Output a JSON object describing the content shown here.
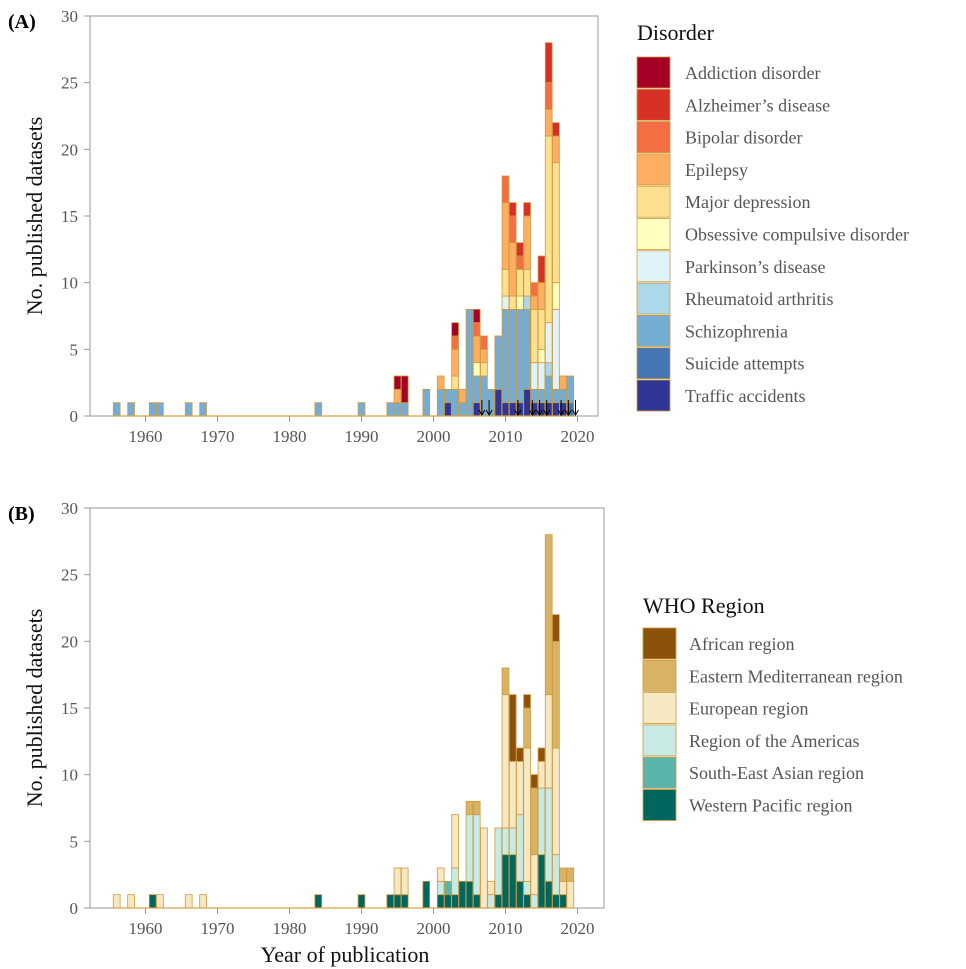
{
  "chart_data": [
    {
      "panel_label": "(A)",
      "type": "bar",
      "stacked": true,
      "xlabel": "",
      "ylabel": "No. published datasets",
      "xlim": [
        1952,
        2022
      ],
      "ylim": [
        0,
        30
      ],
      "x_ticks": [
        1960,
        1970,
        1980,
        1990,
        2000,
        2010,
        2020
      ],
      "y_ticks": [
        0,
        5,
        10,
        15,
        20,
        25,
        30
      ],
      "legend_title": "Disorder",
      "legend_position": "right",
      "series": [
        {
          "name": "Addiction disorder",
          "color": "#a50026"
        },
        {
          "name": "Alzheimer’s disease",
          "color": "#d73027"
        },
        {
          "name": "Bipolar disorder",
          "color": "#f46d43"
        },
        {
          "name": "Epilepsy",
          "color": "#fdae61"
        },
        {
          "name": "Major depression",
          "color": "#fee090"
        },
        {
          "name": "Obsessive compulsive disorder",
          "color": "#ffffbf"
        },
        {
          "name": "Parkinson’s disease",
          "color": "#e0f3f8"
        },
        {
          "name": "Rheumatoid arthritis",
          "color": "#abd9e9"
        },
        {
          "name": "Schizophrenia",
          "color": "#74add1"
        },
        {
          "name": "Suicide attempts",
          "color": "#4575b4"
        },
        {
          "name": "Traffic accidents",
          "color": "#313695"
        }
      ],
      "data": [
        {
          "year": 1956,
          "counts": {
            "Schizophrenia": 1
          }
        },
        {
          "year": 1958,
          "counts": {
            "Schizophrenia": 1
          }
        },
        {
          "year": 1961,
          "counts": {
            "Schizophrenia": 1
          }
        },
        {
          "year": 1962,
          "counts": {
            "Schizophrenia": 1
          }
        },
        {
          "year": 1966,
          "counts": {
            "Schizophrenia": 1
          }
        },
        {
          "year": 1968,
          "counts": {
            "Schizophrenia": 1
          }
        },
        {
          "year": 1984,
          "counts": {
            "Schizophrenia": 1
          }
        },
        {
          "year": 1990,
          "counts": {
            "Schizophrenia": 1
          }
        },
        {
          "year": 1994,
          "counts": {
            "Schizophrenia": 1
          }
        },
        {
          "year": 1995,
          "counts": {
            "Schizophrenia": 1,
            "Epilepsy": 1,
            "Addiction disorder": 1
          }
        },
        {
          "year": 1996,
          "counts": {
            "Schizophrenia": 1,
            "Addiction disorder": 2
          }
        },
        {
          "year": 1999,
          "counts": {
            "Schizophrenia": 2
          }
        },
        {
          "year": 2001,
          "counts": {
            "Schizophrenia": 2,
            "Epilepsy": 1
          }
        },
        {
          "year": 2002,
          "counts": {
            "Traffic accidents": 1,
            "Schizophrenia": 1
          }
        },
        {
          "year": 2003,
          "counts": {
            "Schizophrenia": 2,
            "Major depression": 1,
            "Epilepsy": 2,
            "Bipolar disorder": 1,
            "Addiction disorder": 1
          }
        },
        {
          "year": 2004,
          "counts": {
            "Schizophrenia": 1,
            "Epilepsy": 1
          }
        },
        {
          "year": 2005,
          "counts": {
            "Schizophrenia": 8
          }
        },
        {
          "year": 2006,
          "counts": {
            "Traffic accidents": 1,
            "Schizophrenia": 2,
            "Obsessive compulsive disorder": 1,
            "Epilepsy": 2,
            "Bipolar disorder": 1,
            "Addiction disorder": 1
          }
        },
        {
          "year": 2007,
          "counts": {
            "Schizophrenia": 3,
            "Major depression": 1,
            "Epilepsy": 1,
            "Bipolar disorder": 1
          }
        },
        {
          "year": 2008,
          "counts": {
            "Schizophrenia": 2
          }
        },
        {
          "year": 2009,
          "counts": {
            "Traffic accidents": 2,
            "Schizophrenia": 4
          }
        },
        {
          "year": 2010,
          "counts": {
            "Traffic accidents": 1,
            "Schizophrenia": 7,
            "Parkinson’s disease": 1,
            "Major depression": 2,
            "Epilepsy": 5,
            "Bipolar disorder": 2
          }
        },
        {
          "year": 2011,
          "counts": {
            "Traffic accidents": 1,
            "Schizophrenia": 7,
            "Major depression": 1,
            "Epilepsy": 4,
            "Bipolar disorder": 2,
            "Alzheimer’s disease": 1
          }
        },
        {
          "year": 2012,
          "counts": {
            "Traffic accidents": 1,
            "Schizophrenia": 7,
            "Obsessive compulsive disorder": 1,
            "Major depression": 2,
            "Bipolar disorder": 1,
            "Alzheimer’s disease": 1
          }
        },
        {
          "year": 2013,
          "counts": {
            "Traffic accidents": 2,
            "Schizophrenia": 6,
            "Rheumatoid arthritis": 1,
            "Major depression": 2,
            "Epilepsy": 4,
            "Alzheimer’s disease": 1
          }
        },
        {
          "year": 2014,
          "counts": {
            "Traffic accidents": 1,
            "Schizophrenia": 1,
            "Parkinson’s disease": 2,
            "Major depression": 4,
            "Epilepsy": 1,
            "Bipolar disorder": 1
          }
        },
        {
          "year": 2015,
          "counts": {
            "Traffic accidents": 1,
            "Schizophrenia": 1,
            "Parkinson’s disease": 2,
            "Obsessive compulsive disorder": 1,
            "Major depression": 3,
            "Epilepsy": 2,
            "Alzheimer’s disease": 2
          }
        },
        {
          "year": 2016,
          "counts": {
            "Traffic accidents": 1,
            "Schizophrenia": 2,
            "Rheumatoid arthritis": 1,
            "Parkinson’s disease": 3,
            "Major depression": 14,
            "Epilepsy": 2,
            "Bipolar disorder": 2,
            "Alzheimer’s disease": 3
          }
        },
        {
          "year": 2017,
          "counts": {
            "Traffic accidents": 1,
            "Schizophrenia": 1,
            "Parkinson’s disease": 6,
            "Obsessive compulsive disorder": 2,
            "Major depression": 9,
            "Epilepsy": 2,
            "Alzheimer’s disease": 1
          }
        },
        {
          "year": 2018,
          "counts": {
            "Traffic accidents": 1,
            "Schizophrenia": 1,
            "Epilepsy": 1
          }
        },
        {
          "year": 2019,
          "counts": {
            "Suicide attempts": 1,
            "Schizophrenia": 2
          }
        }
      ],
      "arrows_at_years": [
        2007,
        2008,
        2012,
        2014,
        2015,
        2016,
        2018,
        2019,
        2020
      ]
    },
    {
      "panel_label": "(B)",
      "type": "bar",
      "stacked": true,
      "xlabel": "Year of publication",
      "ylabel": "No. published datasets",
      "xlim": [
        1952,
        2022
      ],
      "ylim": [
        0,
        30
      ],
      "x_ticks": [
        1960,
        1970,
        1980,
        1990,
        2000,
        2010,
        2020
      ],
      "y_ticks": [
        0,
        5,
        10,
        15,
        20,
        25,
        30
      ],
      "legend_title": "WHO Region",
      "legend_position": "right",
      "series": [
        {
          "name": "African region",
          "color": "#8c510a"
        },
        {
          "name": "Eastern Mediterranean region",
          "color": "#d8b365"
        },
        {
          "name": "European region",
          "color": "#f6e8c3"
        },
        {
          "name": "Region of the Americas",
          "color": "#c7eae5"
        },
        {
          "name": "South-East Asian region",
          "color": "#5ab4ac"
        },
        {
          "name": "Western Pacific region",
          "color": "#01665e"
        }
      ],
      "data": [
        {
          "year": 1956,
          "counts": {
            "European region": 1
          }
        },
        {
          "year": 1958,
          "counts": {
            "European region": 1
          }
        },
        {
          "year": 1961,
          "counts": {
            "Western Pacific region": 1
          }
        },
        {
          "year": 1962,
          "counts": {
            "European region": 1
          }
        },
        {
          "year": 1966,
          "counts": {
            "European region": 1
          }
        },
        {
          "year": 1968,
          "counts": {
            "European region": 1
          }
        },
        {
          "year": 1984,
          "counts": {
            "Western Pacific region": 1
          }
        },
        {
          "year": 1990,
          "counts": {
            "Western Pacific region": 1
          }
        },
        {
          "year": 1994,
          "counts": {
            "Western Pacific region": 1
          }
        },
        {
          "year": 1995,
          "counts": {
            "Western Pacific region": 1,
            "European region": 2
          }
        },
        {
          "year": 1996,
          "counts": {
            "Western Pacific region": 1,
            "European region": 2
          }
        },
        {
          "year": 1999,
          "counts": {
            "Western Pacific region": 2
          }
        },
        {
          "year": 2001,
          "counts": {
            "Western Pacific region": 1,
            "Region of the Americas": 1,
            "European region": 1
          }
        },
        {
          "year": 2002,
          "counts": {
            "Western Pacific region": 1,
            "South-East Asian region": 1
          }
        },
        {
          "year": 2003,
          "counts": {
            "Western Pacific region": 1,
            "Region of the Americas": 2,
            "European region": 4
          }
        },
        {
          "year": 2004,
          "counts": {
            "Western Pacific region": 2
          }
        },
        {
          "year": 2005,
          "counts": {
            "Western Pacific region": 2,
            "Region of the Americas": 5,
            "Eastern Mediterranean region": 1
          }
        },
        {
          "year": 2006,
          "counts": {
            "Western Pacific region": 1,
            "Region of the Americas": 6,
            "Eastern Mediterranean region": 1
          }
        },
        {
          "year": 2007,
          "counts": {
            "European region": 6
          }
        },
        {
          "year": 2008,
          "counts": {
            "Region of the Americas": 1,
            "European region": 1
          }
        },
        {
          "year": 2009,
          "counts": {
            "Western Pacific region": 1,
            "Region of the Americas": 5
          }
        },
        {
          "year": 2010,
          "counts": {
            "Western Pacific region": 4,
            "Region of the Americas": 2,
            "European region": 10,
            "Eastern Mediterranean region": 2
          }
        },
        {
          "year": 2011,
          "counts": {
            "Western Pacific region": 4,
            "Region of the Americas": 2,
            "European region": 5,
            "African region": 5
          }
        },
        {
          "year": 2012,
          "counts": {
            "Western Pacific region": 2,
            "Region of the Americas": 5,
            "European region": 4,
            "African region": 1
          }
        },
        {
          "year": 2013,
          "counts": {
            "Western Pacific region": 1,
            "Region of the Americas": 1,
            "European region": 10,
            "Eastern Mediterranean region": 3,
            "African region": 1
          }
        },
        {
          "year": 2014,
          "counts": {
            "Region of the Americas": 1,
            "European region": 3,
            "Eastern Mediterranean region": 5,
            "African region": 1
          }
        },
        {
          "year": 2015,
          "counts": {
            "Western Pacific region": 4,
            "Region of the Americas": 5,
            "European region": 2,
            "African region": 1
          }
        },
        {
          "year": 2016,
          "counts": {
            "Western Pacific region": 2,
            "Region of the Americas": 7,
            "European region": 7,
            "Eastern Mediterranean region": 12
          }
        },
        {
          "year": 2017,
          "counts": {
            "Western Pacific region": 1,
            "Region of the Americas": 3,
            "European region": 8,
            "Eastern Mediterranean region": 8,
            "African region": 2
          }
        },
        {
          "year": 2018,
          "counts": {
            "Western Pacific region": 1,
            "European region": 1,
            "Eastern Mediterranean region": 1
          }
        },
        {
          "year": 2019,
          "counts": {
            "European region": 2,
            "Eastern Mediterranean region": 1
          }
        }
      ]
    }
  ]
}
